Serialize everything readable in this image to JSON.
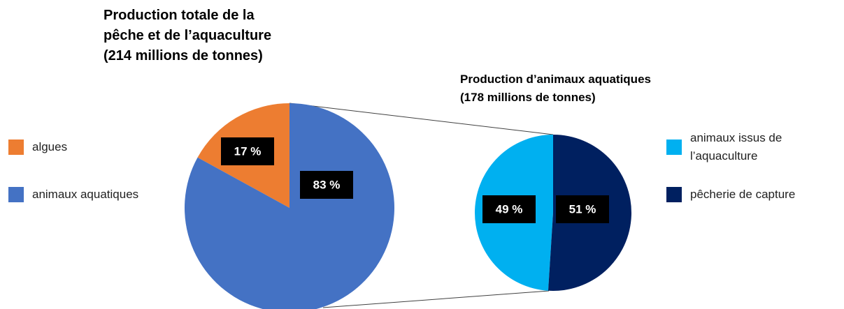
{
  "chart_data": [
    {
      "type": "pie",
      "title": [
        "Production totale de la",
        "pêche et de l’aquaculture",
        "(214 millions de tonnes)"
      ],
      "categories": [
        "algues",
        "animaux aquatiques"
      ],
      "values": [
        17,
        83
      ],
      "value_labels": [
        "17 %",
        "83 %"
      ],
      "colors": [
        "#ed7d31",
        "#4472c4"
      ]
    },
    {
      "type": "pie",
      "title": [
        "Production d’animaux aquatiques",
        "(178 millions de tonnes)"
      ],
      "categories": [
        "animaux issus de l’aquaculture",
        "pêcherie de capture"
      ],
      "values": [
        49,
        51
      ],
      "value_labels": [
        "49 %",
        "51 %"
      ],
      "colors": [
        "#00b0f0",
        "#002060"
      ]
    }
  ]
}
